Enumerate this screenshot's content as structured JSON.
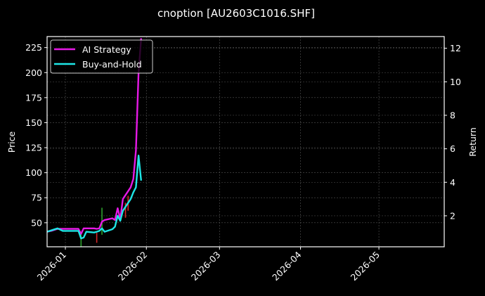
{
  "chart_data": {
    "type": "line",
    "title": "cnoption [AU2603C1016.SHF]",
    "xlabel": "",
    "ylabel": "Price",
    "y2label": "Return",
    "ylim": [
      26,
      236
    ],
    "y2lim": [
      0.15,
      12.7
    ],
    "xlim": [
      "2025-12-25",
      "2026-05-26"
    ],
    "grid": true,
    "legend_position": "upper left",
    "x_ticks": [
      "2026-01",
      "2026-02",
      "2026-03",
      "2026-04",
      "2026-05"
    ],
    "y_ticks": [
      50,
      75,
      100,
      125,
      150,
      175,
      200,
      225
    ],
    "y2_ticks": [
      2,
      4,
      6,
      8,
      10,
      12
    ],
    "x": [
      "2025-12-25",
      "2025-12-27",
      "2025-12-29",
      "2025-12-31",
      "2026-01-02",
      "2026-01-04",
      "2026-01-06",
      "2026-01-07",
      "2026-01-08",
      "2026-01-09",
      "2026-01-12",
      "2026-01-13",
      "2026-01-14",
      "2026-01-15",
      "2026-01-16",
      "2026-01-19",
      "2026-01-20",
      "2026-01-21",
      "2026-01-22",
      "2026-01-23",
      "2026-01-26",
      "2026-01-27",
      "2026-01-28",
      "2026-01-29",
      "2026-01-30"
    ],
    "series": [
      {
        "name": "AI Strategy",
        "color": "#e619e6",
        "axis": "Return",
        "values": [
          1.05,
          1.12,
          1.22,
          1.22,
          1.22,
          1.22,
          1.22,
          0.92,
          1.25,
          1.25,
          1.25,
          1.22,
          1.25,
          1.65,
          1.75,
          1.85,
          1.75,
          2.45,
          1.8,
          3.0,
          3.7,
          4.2,
          5.9,
          10.5,
          12.6
        ]
      },
      {
        "name": "Buy-and-Hold",
        "color": "#1ee6e6",
        "axis": "Return",
        "values": [
          1.05,
          1.15,
          1.25,
          1.1,
          1.1,
          1.1,
          1.1,
          0.65,
          0.7,
          1.05,
          1.0,
          1.05,
          1.1,
          1.25,
          1.05,
          1.2,
          1.35,
          2.0,
          1.7,
          2.3,
          3.0,
          3.4,
          3.7,
          5.6,
          4.1
        ]
      }
    ],
    "candles": [
      {
        "x": "2026-01-07",
        "color": "#2ca02c",
        "top": 40,
        "bottom": 26
      },
      {
        "x": "2026-01-13",
        "color": "#d62728",
        "top": 40,
        "bottom": 30
      },
      {
        "x": "2026-01-15",
        "color": "#2ca02c",
        "top": 65,
        "bottom": 38
      },
      {
        "x": "2026-01-24",
        "color": "#d62728",
        "top": 70,
        "bottom": 55
      },
      {
        "x": "2026-01-25",
        "color": "#d62728",
        "top": 77,
        "bottom": 62
      }
    ]
  },
  "legend": {
    "items": [
      {
        "label": "AI Strategy",
        "color": "#e619e6"
      },
      {
        "label": "Buy-and-Hold",
        "color": "#1ee6e6"
      }
    ]
  }
}
